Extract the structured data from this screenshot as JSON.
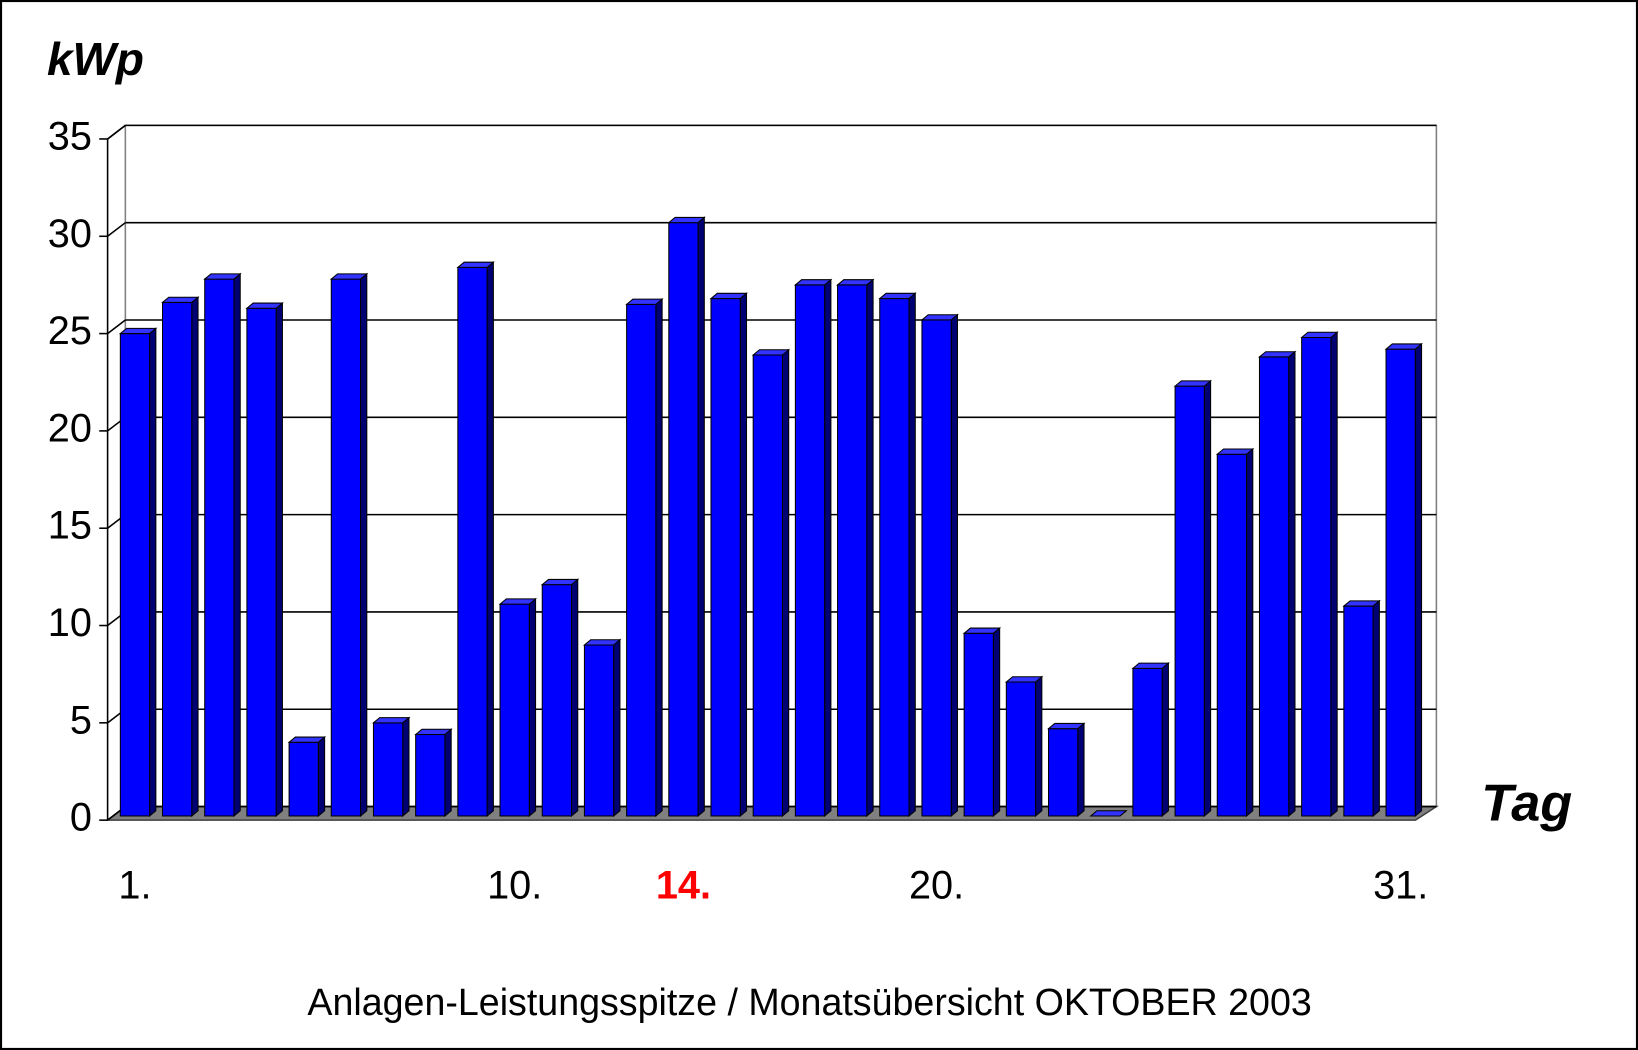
{
  "chart_data": {
    "type": "bar3d",
    "title": "Anlagen-Leistungsspitze / Monatsübersicht OKTOBER 2003",
    "y_label": "kWp",
    "x_label": "Tag",
    "categories": [
      "1.",
      null,
      null,
      null,
      null,
      null,
      null,
      null,
      null,
      "10.",
      null,
      null,
      null,
      "14.",
      null,
      null,
      null,
      null,
      null,
      "20.",
      null,
      null,
      null,
      null,
      null,
      null,
      null,
      null,
      null,
      null,
      "31."
    ],
    "values": [
      25.0,
      26.6,
      27.8,
      26.3,
      4.0,
      27.8,
      5.0,
      4.4,
      28.4,
      11.1,
      12.1,
      9.0,
      26.5,
      30.7,
      26.8,
      23.9,
      27.5,
      27.5,
      26.8,
      25.7,
      9.6,
      7.1,
      4.7,
      0,
      7.8,
      22.3,
      18.8,
      23.8,
      24.8,
      11.0,
      24.2
    ],
    "color": "#0000ff",
    "highlight": {
      "category": 13,
      "color": "#ff0000"
    },
    "ylim": [
      0,
      35
    ],
    "yticks": [
      0,
      5,
      10,
      15,
      20,
      25,
      30,
      35
    ],
    "grid": true
  }
}
